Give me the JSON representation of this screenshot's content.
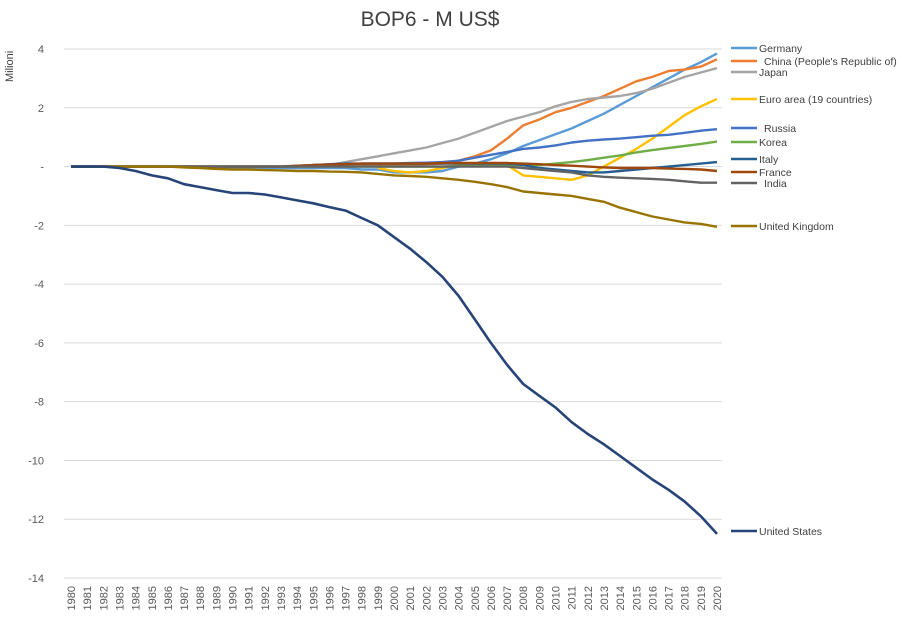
{
  "chart_data": {
    "type": "line",
    "title": "BOP6 - M US$",
    "xlabel": "",
    "ylabel": "Milioni",
    "ylim": [
      -14,
      4
    ],
    "yticks": [
      4,
      2,
      0,
      -2,
      -4,
      -6,
      -8,
      -10,
      -12,
      -14
    ],
    "ytick_labels": [
      "4",
      "2",
      "-",
      "-2",
      "-4",
      "-6",
      "-8",
      "-10",
      "-12",
      "-14"
    ],
    "grid": true,
    "legend": "right (labels at line ends)",
    "x": [
      1980,
      1981,
      1982,
      1983,
      1984,
      1985,
      1986,
      1987,
      1988,
      1989,
      1990,
      1991,
      1992,
      1993,
      1994,
      1995,
      1996,
      1997,
      1998,
      1999,
      2000,
      2001,
      2002,
      2003,
      2004,
      2005,
      2006,
      2007,
      2008,
      2009,
      2010,
      2011,
      2012,
      2013,
      2014,
      2015,
      2016,
      2017,
      2018,
      2019,
      2020
    ],
    "series": [
      {
        "name": "Germany",
        "color": "#5b9bd5",
        "values": [
          0,
          0,
          0,
          0,
          0,
          0,
          0,
          0,
          0,
          0,
          -0.05,
          -0.05,
          -0.05,
          -0.05,
          -0.05,
          -0.05,
          -0.05,
          -0.05,
          -0.1,
          -0.1,
          -0.2,
          -0.2,
          -0.2,
          -0.15,
          0,
          0.1,
          0.25,
          0.45,
          0.7,
          0.9,
          1.1,
          1.3,
          1.55,
          1.8,
          2.1,
          2.4,
          2.7,
          3.0,
          3.3,
          3.55,
          3.85
        ]
      },
      {
        "name": "China (People's Republic of)",
        "color": "#ed7d31",
        "values": [
          0,
          0,
          0,
          0,
          0,
          0,
          0,
          0,
          0,
          0,
          0,
          0,
          0,
          0,
          0,
          0,
          0.02,
          0.03,
          0.05,
          0.05,
          0.05,
          0.06,
          0.08,
          0.1,
          0.2,
          0.35,
          0.55,
          0.95,
          1.4,
          1.6,
          1.85,
          2.0,
          2.2,
          2.4,
          2.65,
          2.9,
          3.05,
          3.25,
          3.3,
          3.4,
          3.65
        ]
      },
      {
        "name": "Japan",
        "color": "#a5a5a5",
        "values": [
          0,
          0,
          0,
          0,
          0,
          0,
          0,
          0,
          0,
          0,
          0,
          0,
          0,
          0,
          0,
          0,
          0.05,
          0.15,
          0.25,
          0.35,
          0.45,
          0.55,
          0.65,
          0.8,
          0.95,
          1.15,
          1.35,
          1.55,
          1.7,
          1.85,
          2.05,
          2.2,
          2.3,
          2.35,
          2.4,
          2.5,
          2.65,
          2.85,
          3.05,
          3.2,
          3.35
        ]
      },
      {
        "name": "Euro area (19 countries)",
        "color": "#ffc000",
        "values": [
          null,
          null,
          null,
          null,
          null,
          null,
          null,
          null,
          null,
          null,
          null,
          null,
          null,
          null,
          null,
          null,
          null,
          null,
          null,
          -0.05,
          -0.15,
          -0.2,
          -0.15,
          -0.05,
          0.05,
          0.05,
          0.05,
          0.05,
          -0.3,
          -0.35,
          -0.4,
          -0.45,
          -0.3,
          0.0,
          0.3,
          0.6,
          0.95,
          1.35,
          1.75,
          2.05,
          2.3
        ]
      },
      {
        "name": "Russia",
        "color": "#4472c4",
        "values": [
          null,
          null,
          null,
          null,
          null,
          null,
          null,
          null,
          null,
          null,
          null,
          null,
          null,
          0,
          0.02,
          0.05,
          0.06,
          0.08,
          0.1,
          0.1,
          0.1,
          0.12,
          0.13,
          0.15,
          0.2,
          0.3,
          0.4,
          0.5,
          0.6,
          0.65,
          0.72,
          0.82,
          0.88,
          0.92,
          0.95,
          1.0,
          1.05,
          1.08,
          1.15,
          1.22,
          1.27
        ]
      },
      {
        "name": "Korea",
        "color": "#70ad47",
        "values": [
          0,
          0,
          0,
          0,
          0,
          0,
          0,
          0,
          0,
          0,
          0,
          0,
          0,
          0,
          0,
          0,
          0,
          0,
          0,
          0,
          0,
          0,
          0,
          0,
          0.02,
          0.03,
          0.04,
          0.05,
          0.05,
          0.05,
          0.1,
          0.15,
          0.22,
          0.3,
          0.38,
          0.48,
          0.56,
          0.63,
          0.7,
          0.77,
          0.85
        ]
      },
      {
        "name": "Italy",
        "color": "#255e91",
        "values": [
          0,
          0,
          0,
          0,
          0,
          0,
          0,
          0,
          0,
          0,
          0,
          0,
          0,
          0,
          0,
          0.05,
          0.08,
          0.1,
          0.1,
          0.1,
          0.1,
          0.1,
          0.1,
          0.1,
          0.1,
          0.1,
          0.1,
          0.1,
          0.05,
          -0.05,
          -0.1,
          -0.15,
          -0.2,
          -0.2,
          -0.15,
          -0.1,
          -0.05,
          0,
          0.05,
          0.1,
          0.15
        ]
      },
      {
        "name": "France",
        "color": "#9e480e",
        "values": [
          0,
          0,
          0,
          0,
          0,
          0,
          0,
          0,
          0,
          0,
          0,
          0,
          0,
          0,
          0.03,
          0.05,
          0.07,
          0.08,
          0.1,
          0.1,
          0.1,
          0.1,
          0.1,
          0.12,
          0.12,
          0.12,
          0.12,
          0.12,
          0.1,
          0.08,
          0.05,
          0.03,
          0.0,
          -0.03,
          -0.05,
          -0.05,
          -0.05,
          -0.07,
          -0.08,
          -0.1,
          -0.15
        ]
      },
      {
        "name": "India",
        "color": "#636363",
        "values": [
          0,
          0,
          0,
          0,
          0,
          0,
          0,
          0,
          0,
          0,
          0,
          0,
          0,
          0,
          0,
          0,
          0,
          0,
          0,
          0,
          0,
          0,
          0,
          0,
          0,
          0,
          0,
          0,
          -0.05,
          -0.1,
          -0.15,
          -0.2,
          -0.3,
          -0.35,
          -0.38,
          -0.4,
          -0.42,
          -0.45,
          -0.5,
          -0.55,
          -0.55
        ]
      },
      {
        "name": "United Kingdom",
        "color": "#997300",
        "values": [
          0,
          0,
          0,
          0,
          0,
          0,
          0,
          -0.03,
          -0.05,
          -0.08,
          -0.1,
          -0.1,
          -0.12,
          -0.13,
          -0.15,
          -0.15,
          -0.17,
          -0.18,
          -0.2,
          -0.25,
          -0.3,
          -0.32,
          -0.35,
          -0.4,
          -0.45,
          -0.52,
          -0.6,
          -0.7,
          -0.85,
          -0.9,
          -0.95,
          -1.0,
          -1.1,
          -1.2,
          -1.4,
          -1.55,
          -1.7,
          -1.8,
          -1.9,
          -1.95,
          -2.05
        ]
      },
      {
        "name": "United States",
        "color": "#264478",
        "values": [
          0,
          0,
          0,
          -0.05,
          -0.15,
          -0.3,
          -0.4,
          -0.6,
          -0.7,
          -0.8,
          -0.9,
          -0.9,
          -0.95,
          -1.05,
          -1.15,
          -1.25,
          -1.38,
          -1.5,
          -1.75,
          -2.0,
          -2.4,
          -2.8,
          -3.25,
          -3.75,
          -4.4,
          -5.2,
          -6.0,
          -6.75,
          -7.4,
          -7.8,
          -8.2,
          -8.7,
          -9.1,
          -9.45,
          -9.85,
          -10.25,
          -10.65,
          -11.0,
          -11.4,
          -11.9,
          -12.5
        ]
      }
    ]
  }
}
